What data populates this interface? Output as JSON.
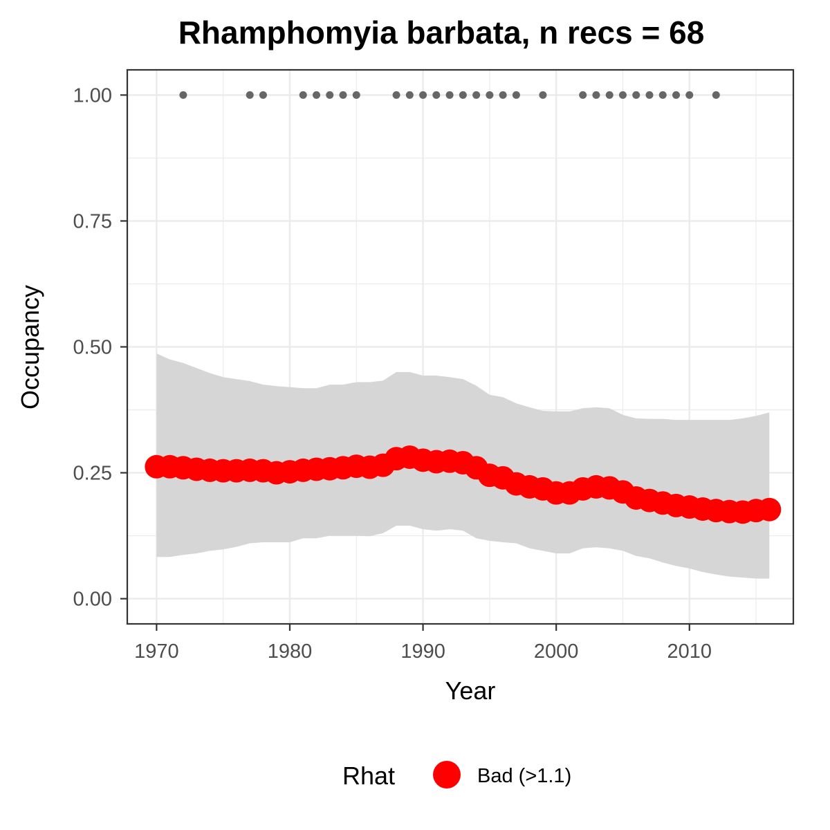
{
  "chart_data": {
    "type": "line",
    "title": "Rhamphomyia barbata, n recs = 68",
    "xlabel": "Year",
    "ylabel": "Occupancy",
    "xlim": [
      1967.8,
      2017.8
    ],
    "ylim": [
      -0.05,
      1.05
    ],
    "x_ticks": [
      1970,
      1980,
      1990,
      2000,
      2010
    ],
    "x_tick_labels": [
      "1970",
      "1980",
      "1990",
      "2000",
      "2010"
    ],
    "x_minor_ticks": [
      1975,
      1985,
      1995,
      2005,
      2015
    ],
    "y_ticks": [
      0,
      0.25,
      0.5,
      0.75,
      1
    ],
    "y_tick_labels": [
      "0.00",
      "0.25",
      "0.50",
      "0.75",
      "1.00"
    ],
    "y_minor_ticks": [
      0.125,
      0.375,
      0.625,
      0.875
    ],
    "grid": true,
    "legend": {
      "title": "Rhat",
      "position": "bottom",
      "entries": [
        {
          "label": "Bad (>1.1)",
          "color": "#ff0000"
        }
      ]
    },
    "colors": {
      "line": "#ff0000",
      "ribbon": "#d6d6d6",
      "records": "#666666",
      "grid": "#ebebeb",
      "panel_border": "#333333"
    },
    "series": [
      {
        "type": "line_with_points",
        "x": [
          1970,
          1971,
          1972,
          1973,
          1974,
          1975,
          1976,
          1977,
          1978,
          1979,
          1980,
          1981,
          1982,
          1983,
          1984,
          1985,
          1986,
          1987,
          1988,
          1989,
          1990,
          1991,
          1992,
          1993,
          1994,
          1995,
          1996,
          1997,
          1998,
          1999,
          2000,
          2001,
          2002,
          2003,
          2004,
          2005,
          2006,
          2007,
          2008,
          2009,
          2010,
          2011,
          2012,
          2013,
          2014,
          2015,
          2016
        ],
        "y": [
          0.262,
          0.262,
          0.26,
          0.257,
          0.255,
          0.254,
          0.254,
          0.255,
          0.254,
          0.25,
          0.252,
          0.255,
          0.257,
          0.258,
          0.26,
          0.263,
          0.261,
          0.265,
          0.278,
          0.281,
          0.275,
          0.272,
          0.273,
          0.27,
          0.26,
          0.245,
          0.24,
          0.228,
          0.222,
          0.218,
          0.21,
          0.21,
          0.218,
          0.222,
          0.22,
          0.212,
          0.2,
          0.195,
          0.19,
          0.185,
          0.182,
          0.178,
          0.175,
          0.173,
          0.172,
          0.175,
          0.177
        ]
      },
      {
        "type": "ribbon",
        "x": [
          1970,
          1971,
          1972,
          1973,
          1974,
          1975,
          1976,
          1977,
          1978,
          1979,
          1980,
          1981,
          1982,
          1983,
          1984,
          1985,
          1986,
          1987,
          1988,
          1989,
          1990,
          1991,
          1992,
          1993,
          1994,
          1995,
          1996,
          1997,
          1998,
          1999,
          2000,
          2001,
          2002,
          2003,
          2004,
          2005,
          2006,
          2007,
          2008,
          2009,
          2010,
          2011,
          2012,
          2013,
          2014,
          2015,
          2016
        ],
        "lower": [
          0.083,
          0.083,
          0.087,
          0.09,
          0.095,
          0.098,
          0.103,
          0.11,
          0.112,
          0.112,
          0.112,
          0.12,
          0.12,
          0.125,
          0.125,
          0.125,
          0.124,
          0.13,
          0.145,
          0.145,
          0.138,
          0.135,
          0.138,
          0.135,
          0.12,
          0.115,
          0.112,
          0.11,
          0.1,
          0.095,
          0.09,
          0.09,
          0.1,
          0.102,
          0.1,
          0.095,
          0.085,
          0.08,
          0.072,
          0.065,
          0.06,
          0.053,
          0.048,
          0.044,
          0.042,
          0.04,
          0.04
        ],
        "upper": [
          0.487,
          0.475,
          0.468,
          0.458,
          0.448,
          0.44,
          0.436,
          0.432,
          0.425,
          0.422,
          0.42,
          0.418,
          0.418,
          0.425,
          0.425,
          0.43,
          0.43,
          0.433,
          0.45,
          0.45,
          0.443,
          0.443,
          0.44,
          0.436,
          0.423,
          0.405,
          0.4,
          0.388,
          0.38,
          0.373,
          0.372,
          0.372,
          0.378,
          0.38,
          0.378,
          0.365,
          0.358,
          0.357,
          0.357,
          0.355,
          0.355,
          0.355,
          0.355,
          0.355,
          0.358,
          0.363,
          0.37
        ]
      },
      {
        "type": "scatter",
        "name": "records",
        "x": [
          1972,
          1977,
          1978,
          1981,
          1982,
          1983,
          1984,
          1985,
          1988,
          1989,
          1990,
          1991,
          1992,
          1993,
          1994,
          1995,
          1996,
          1997,
          1999,
          2002,
          2003,
          2004,
          2005,
          2006,
          2007,
          2008,
          2009,
          2010,
          2012
        ],
        "y": [
          1,
          1,
          1,
          1,
          1,
          1,
          1,
          1,
          1,
          1,
          1,
          1,
          1,
          1,
          1,
          1,
          1,
          1,
          1,
          1,
          1,
          1,
          1,
          1,
          1,
          1,
          1,
          1,
          1
        ]
      }
    ]
  }
}
